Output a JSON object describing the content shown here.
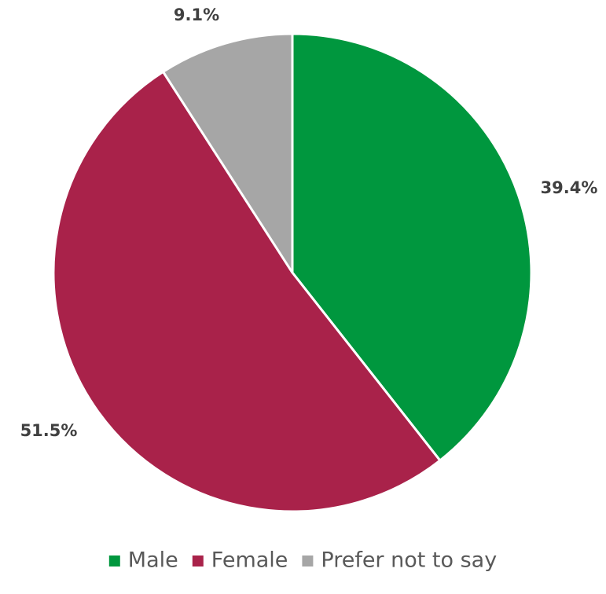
{
  "chart_data": {
    "type": "pie",
    "categories": [
      "Male",
      "Female",
      "Prefer not to say"
    ],
    "values": [
      39.4,
      51.5,
      9.1
    ],
    "data_labels": [
      "39.4%",
      "51.5%",
      "9.1%"
    ],
    "colors": [
      "#00973e",
      "#a9224a",
      "#a6a6a6"
    ],
    "start_angle_deg": 0,
    "direction": "clockwise",
    "legend": {
      "placement": "bottom",
      "entries": [
        "Male",
        "Female",
        "Prefer not to say"
      ]
    }
  }
}
